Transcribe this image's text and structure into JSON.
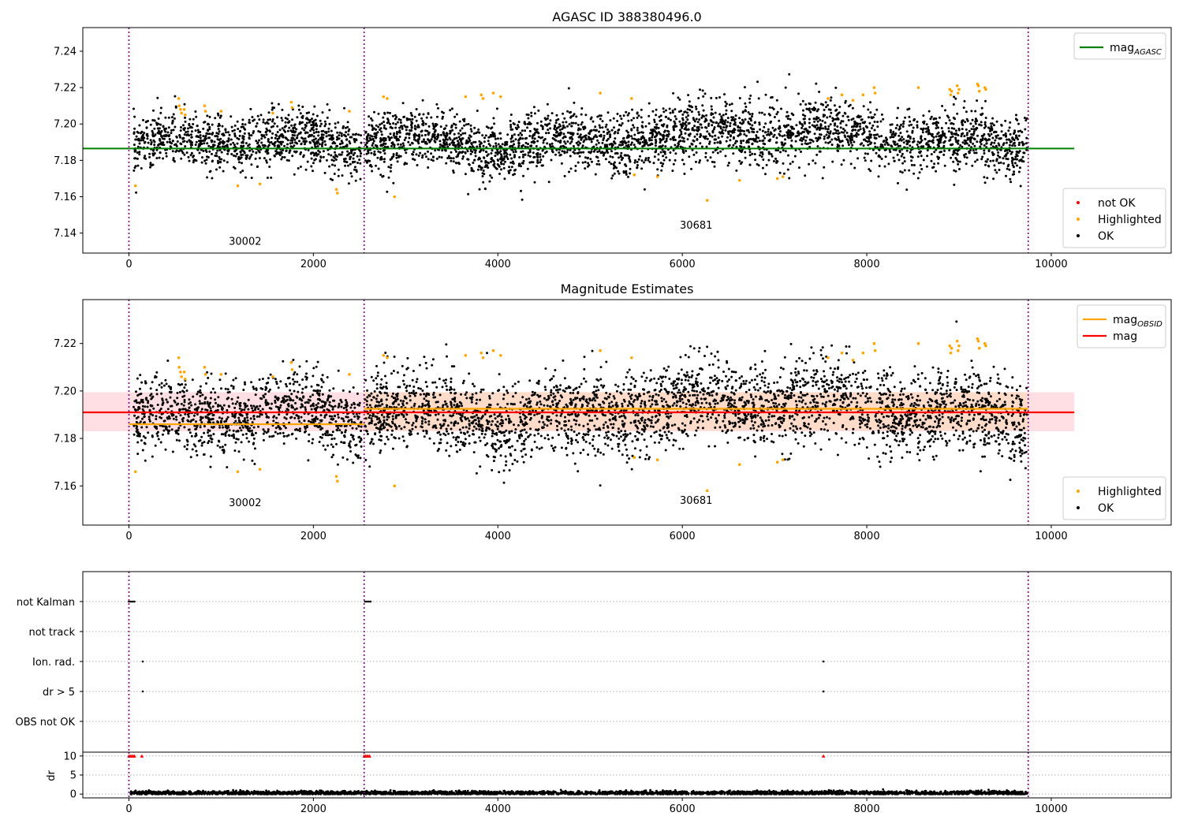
{
  "colors": {
    "ok": "#000000",
    "highlighted": "#ffa500",
    "not_ok": "#ff0000",
    "mag_agasc": "#008000",
    "mag_obsid": "#ffa500",
    "mag": "#ff0000",
    "mag_band": "#ffc0c8",
    "obsid_boundary": "#800080"
  },
  "chart_data": [
    {
      "type": "scatter",
      "title": "AGASC ID 388380496.0",
      "xlim": [
        -500,
        11300
      ],
      "ylim": [
        7.129,
        7.253
      ],
      "xticks": [
        0,
        2000,
        4000,
        6000,
        8000,
        10000
      ],
      "yticks": [
        7.14,
        7.16,
        7.18,
        7.2,
        7.22,
        7.24
      ],
      "ytick_labels": [
        "7.14",
        "7.16",
        "7.18",
        "7.20",
        "7.22",
        "7.24"
      ],
      "obsid_boundaries": [
        0,
        2550,
        9750
      ],
      "obsid_labels": [
        {
          "text": "30002",
          "x": 1260,
          "y": 7.1335
        },
        {
          "text": "30681",
          "x": 6150,
          "y": 7.1425
        }
      ],
      "lines": [
        {
          "name": "mag_AGASC",
          "y": 7.1865,
          "x_range": [
            -500,
            10250
          ],
          "color": "#008000"
        }
      ],
      "legends": [
        {
          "position": "upper right",
          "entries": [
            {
              "label": "mag",
              "subscript": "AGASC",
              "marker": "line",
              "color": "#008000"
            }
          ]
        },
        {
          "position": "lower right",
          "entries": [
            {
              "label": "not OK",
              "marker": "dot",
              "color": "#ff0000"
            },
            {
              "label": "Highlighted",
              "marker": "dot",
              "color": "#ffa500"
            },
            {
              "label": "OK",
              "marker": "dot",
              "color": "#000000"
            }
          ]
        }
      ],
      "series": [
        {
          "name": "OK",
          "segments": [
            {
              "x_range": [
                50,
                2520
              ],
              "mean": 7.187,
              "spread": 0.0075
            },
            {
              "x_range": [
                2560,
                9740
              ],
              "mean": 7.192,
              "spread": 0.0085
            }
          ]
        },
        {
          "name": "Highlighted",
          "points": [
            [
              70,
              7.166
            ],
            [
              540,
              7.214
            ],
            [
              545,
              7.21
            ],
            [
              560,
              7.208
            ],
            [
              570,
              7.206
            ],
            [
              600,
              7.208
            ],
            [
              610,
              7.205
            ],
            [
              820,
              7.21
            ],
            [
              830,
              7.207
            ],
            [
              1000,
              7.207
            ],
            [
              1180,
              7.166
            ],
            [
              1420,
              7.167
            ],
            [
              1560,
              7.206
            ],
            [
              1760,
              7.212
            ],
            [
              1770,
              7.209
            ],
            [
              2250,
              7.164
            ],
            [
              2260,
              7.162
            ],
            [
              2390,
              7.207
            ],
            [
              2760,
              7.215
            ],
            [
              2800,
              7.214
            ],
            [
              2880,
              7.16
            ],
            [
              3650,
              7.215
            ],
            [
              3820,
              7.216
            ],
            [
              3840,
              7.214
            ],
            [
              3950,
              7.217
            ],
            [
              4030,
              7.215
            ],
            [
              5110,
              7.217
            ],
            [
              5450,
              7.214
            ],
            [
              5480,
              7.172
            ],
            [
              5730,
              7.171
            ],
            [
              6270,
              7.158
            ],
            [
              6620,
              7.169
            ],
            [
              7030,
              7.17
            ],
            [
              7090,
              7.171
            ],
            [
              7580,
              7.214
            ],
            [
              7730,
              7.216
            ],
            [
              7850,
              7.213
            ],
            [
              7960,
              7.216
            ],
            [
              8080,
              7.22
            ],
            [
              8090,
              7.217
            ],
            [
              8560,
              7.22
            ],
            [
              8900,
              7.219
            ],
            [
              8910,
              7.216
            ],
            [
              8920,
              7.218
            ],
            [
              8980,
              7.221
            ],
            [
              8990,
              7.217
            ],
            [
              9000,
              7.219
            ],
            [
              9200,
              7.222
            ],
            [
              9210,
              7.221
            ],
            [
              9220,
              7.218
            ],
            [
              9280,
              7.22
            ],
            [
              9290,
              7.219
            ]
          ]
        }
      ]
    },
    {
      "type": "scatter",
      "title": "Magnitude Estimates",
      "xlim": [
        -500,
        11300
      ],
      "ylim": [
        7.1435,
        7.2385
      ],
      "xticks": [
        0,
        2000,
        4000,
        6000,
        8000,
        10000
      ],
      "yticks": [
        7.16,
        7.18,
        7.2,
        7.22
      ],
      "ytick_labels": [
        "7.16",
        "7.18",
        "7.20",
        "7.22"
      ],
      "obsid_boundaries": [
        0,
        2550,
        9750
      ],
      "obsid_labels": [
        {
          "text": "30002",
          "x": 1260,
          "y": 7.1515
        },
        {
          "text": "30681",
          "x": 6150,
          "y": 7.1525
        }
      ],
      "lines": [
        {
          "name": "mag_OBSID",
          "y": 7.186,
          "x_range": [
            0,
            2550
          ],
          "color": "#ffa500"
        },
        {
          "name": "mag_OBSID",
          "y": 7.1925,
          "x_range": [
            2550,
            9750
          ],
          "color": "#ffa500"
        },
        {
          "name": "mag",
          "y": 7.191,
          "x_range": [
            -500,
            10250
          ],
          "color": "#ff0000"
        }
      ],
      "bands": [
        {
          "y_range": [
            7.183,
            7.1995
          ],
          "x_range": [
            -500,
            10250
          ],
          "color": "#ffc0c8",
          "opacity": 0.5
        },
        {
          "y_range": [
            7.1835,
            7.1995
          ],
          "x_range": [
            2550,
            9750
          ],
          "color": "#ffd6a8",
          "opacity": 0.45
        }
      ],
      "legends": [
        {
          "position": "upper right",
          "entries": [
            {
              "label": "mag",
              "subscript": "OBSID",
              "marker": "line",
              "color": "#ffa500"
            },
            {
              "label": "mag",
              "marker": "line",
              "color": "#ff0000"
            }
          ]
        },
        {
          "position": "lower right",
          "entries": [
            {
              "label": "Highlighted",
              "marker": "dot",
              "color": "#ffa500"
            },
            {
              "label": "OK",
              "marker": "dot",
              "color": "#000000"
            }
          ]
        }
      ],
      "series": [
        {
          "name": "OK",
          "segments": [
            {
              "x_range": [
                50,
                2520
              ],
              "mean": 7.187,
              "spread": 0.0075
            },
            {
              "x_range": [
                2560,
                9740
              ],
              "mean": 7.192,
              "spread": 0.0085
            }
          ]
        },
        {
          "name": "Highlighted",
          "same_as_panel": 0
        }
      ]
    },
    {
      "type": "scatter",
      "title": "",
      "xlim": [
        -500,
        11300
      ],
      "categories": [
        "not Kalman",
        "not track",
        "Ion. rad.",
        "dr > 5",
        "OBS not OK"
      ],
      "obsid_boundaries": [
        0,
        2550,
        9750
      ],
      "flags": [
        {
          "category": "not Kalman",
          "x": [
            0,
            20,
            40,
            60,
            2560,
            2580,
            2600,
            2620
          ]
        },
        {
          "category": "not track",
          "x": []
        },
        {
          "category": "Ion. rad.",
          "x": [
            150,
            7530
          ]
        },
        {
          "category": "dr > 5",
          "x": [
            150,
            7530
          ]
        },
        {
          "category": "OBS not OK",
          "x": []
        }
      ]
    },
    {
      "type": "scatter",
      "title": "",
      "ylabel": "dr",
      "xlim": [
        -500,
        11300
      ],
      "ylim": [
        -1,
        11
      ],
      "xticks": [
        0,
        2000,
        4000,
        6000,
        8000,
        10000
      ],
      "yticks": [
        0,
        5,
        10
      ],
      "ytick_labels": [
        "0",
        "5",
        "10"
      ],
      "obsid_boundaries": [
        0,
        2550,
        9750
      ],
      "series": [
        {
          "name": "dr",
          "x_range": [
            20,
            9740
          ],
          "mean": 0.3,
          "spread": 0.25
        },
        {
          "name": "dr clipped",
          "color": "#ff0000",
          "y": 10,
          "x": [
            0,
            15,
            30,
            45,
            60,
            140,
            2550,
            2565,
            2580,
            2595,
            2610,
            7530
          ]
        }
      ]
    }
  ]
}
